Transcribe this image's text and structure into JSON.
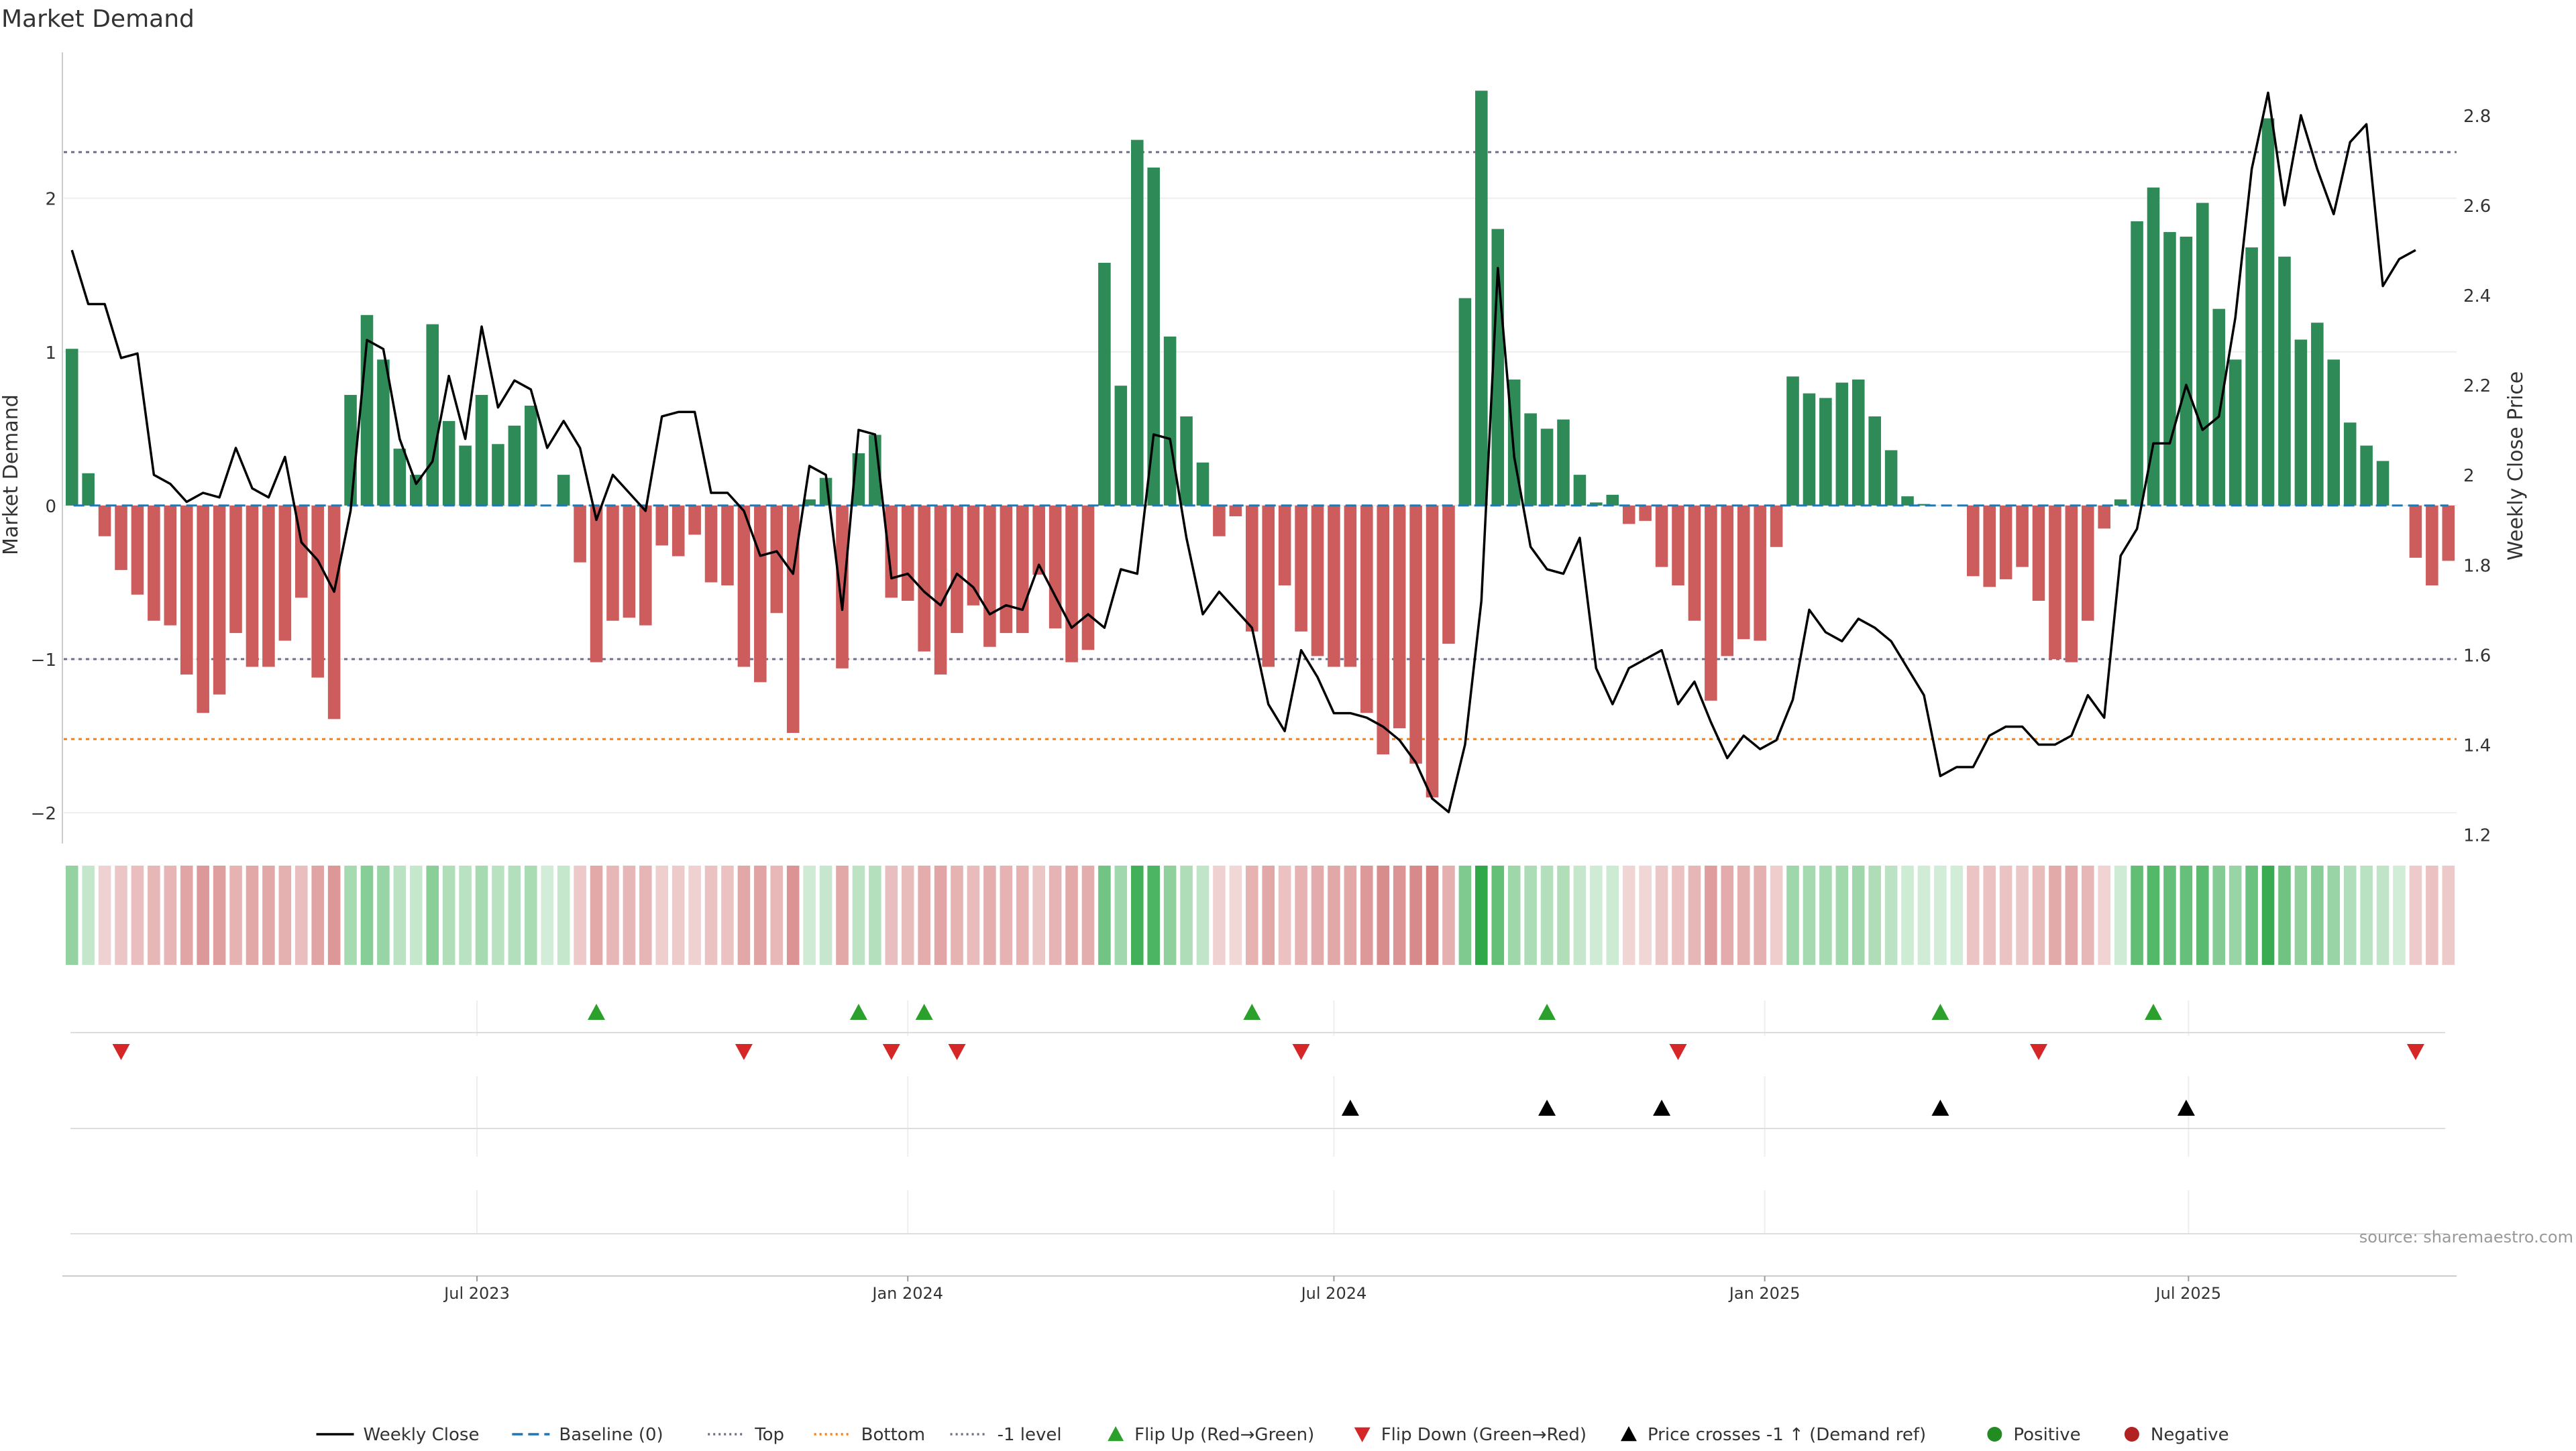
{
  "title": "Market Demand",
  "source": "source: sharemaestro.com",
  "colors": {
    "positive": "#2e8b57",
    "negative": "#cd5c5c",
    "price": "#000000",
    "baseline": "#1f77b4",
    "top": "#6e6e8c",
    "bottom": "#ff7f0e",
    "flip_up": "#2ca02c",
    "flip_down": "#d62728",
    "cross": "#000000",
    "grid": "#eeeeee"
  },
  "chart_data": {
    "type": "bar",
    "ylabel": "Market Demand",
    "y2label": "Weekly Close Price",
    "ylim": [
      -2.2,
      2.95
    ],
    "y2lim": [
      1.18,
      2.94
    ],
    "yticks": [
      2,
      1,
      0,
      -1,
      -2
    ],
    "ytick_labels": [
      "2",
      "1",
      "0",
      "−1",
      "−2"
    ],
    "y2ticks": [
      2.8,
      2.6,
      2.4,
      2.2,
      2.0,
      1.8,
      1.6,
      1.4,
      1.2
    ],
    "y2tick_labels": [
      "2.8",
      "2.6",
      "2.4",
      "2.2",
      "2",
      "1.8",
      "1.6",
      "1.4",
      "1.2"
    ],
    "x_start": "2023-01-09",
    "x_end": "2025-10-20",
    "x_tick_dates": [
      "2023-07-01",
      "2024-01-01",
      "2024-07-01",
      "2025-01-01",
      "2025-07-01"
    ],
    "x_tick_labels": [
      "Jul 2023",
      "Jan 2024",
      "Jul 2024",
      "Jan 2025",
      "Jul 2025"
    ],
    "levels": {
      "top": 2.3,
      "bottom": -1.52,
      "minus_one": -1
    },
    "demand": [
      1.02,
      0.21,
      -0.2,
      -0.42,
      -0.58,
      -0.75,
      -0.78,
      -1.1,
      -1.35,
      -1.23,
      -0.83,
      -1.05,
      -1.05,
      -0.88,
      -0.6,
      -1.12,
      -1.39,
      0.72,
      1.24,
      0.95,
      0.37,
      0.2,
      1.18,
      0.55,
      0.39,
      0.72,
      0.4,
      0.52,
      0.65,
      0.0,
      0.2,
      -0.37,
      -1.02,
      -0.75,
      -0.73,
      -0.78,
      -0.26,
      -0.33,
      -0.19,
      -0.5,
      -0.52,
      -1.05,
      -1.15,
      -0.7,
      -1.48,
      0.04,
      0.18,
      -1.06,
      0.34,
      0.46,
      -0.6,
      -0.62,
      -0.95,
      -1.1,
      -0.83,
      -0.65,
      -0.92,
      -0.83,
      -0.83,
      -0.45,
      -0.8,
      -1.02,
      -0.94,
      1.58,
      0.78,
      2.38,
      2.2,
      1.1,
      0.58,
      0.28,
      -0.2,
      -0.07,
      -0.82,
      -1.05,
      -0.52,
      -0.82,
      -0.98,
      -1.05,
      -1.05,
      -1.35,
      -1.62,
      -1.45,
      -1.68,
      -1.9,
      -0.9,
      1.35,
      2.7,
      1.8,
      0.82,
      0.6,
      0.5,
      0.56,
      0.2,
      0.02,
      0.07,
      -0.12,
      -0.1,
      -0.4,
      -0.52,
      -0.75,
      -1.27,
      -0.98,
      -0.87,
      -0.88,
      -0.27,
      0.84,
      0.73,
      0.7,
      0.8,
      0.82,
      0.58,
      0.36,
      0.06,
      0.01,
      0.0,
      0.0,
      -0.46,
      -0.53,
      -0.48,
      -0.4,
      -0.62,
      -1.0,
      -1.02,
      -0.75,
      -0.15,
      0.04,
      1.85,
      2.07,
      1.78,
      1.75,
      1.97,
      1.28,
      0.95,
      1.68,
      2.52,
      1.62,
      1.08,
      1.19,
      0.95,
      0.54,
      0.39,
      0.29,
      0.0,
      -0.34,
      -0.52,
      -0.36
    ],
    "price": [
      2.5,
      2.38,
      2.38,
      2.26,
      2.27,
      2.0,
      1.98,
      1.94,
      1.96,
      1.95,
      2.06,
      1.97,
      1.95,
      2.04,
      1.85,
      1.81,
      1.74,
      1.92,
      2.3,
      2.28,
      2.08,
      1.98,
      2.03,
      2.22,
      2.08,
      2.33,
      2.15,
      2.21,
      2.19,
      2.06,
      2.12,
      2.06,
      1.9,
      2.0,
      1.96,
      1.92,
      2.13,
      2.14,
      2.14,
      1.96,
      1.96,
      1.92,
      1.82,
      1.83,
      1.78,
      2.02,
      2.0,
      1.7,
      2.1,
      2.09,
      1.77,
      1.78,
      1.74,
      1.71,
      1.78,
      1.75,
      1.69,
      1.71,
      1.7,
      1.8,
      1.73,
      1.66,
      1.69,
      1.66,
      1.79,
      1.78,
      2.09,
      2.08,
      1.86,
      1.69,
      1.74,
      1.7,
      1.66,
      1.49,
      1.43,
      1.61,
      1.55,
      1.47,
      1.47,
      1.46,
      1.44,
      1.41,
      1.36,
      1.28,
      1.25,
      1.4,
      1.72,
      2.46,
      2.04,
      1.84,
      1.79,
      1.78,
      1.86,
      1.57,
      1.49,
      1.57,
      1.59,
      1.61,
      1.49,
      1.54,
      1.45,
      1.37,
      1.42,
      1.39,
      1.41,
      1.5,
      1.7,
      1.65,
      1.63,
      1.68,
      1.66,
      1.63,
      1.57,
      1.51,
      1.33,
      1.35,
      1.35,
      1.42,
      1.44,
      1.44,
      1.4,
      1.4,
      1.42,
      1.51,
      1.46,
      1.82,
      1.88,
      2.07,
      2.07,
      2.2,
      2.1,
      2.13,
      2.35,
      2.68,
      2.85,
      2.6,
      2.8,
      2.68,
      2.58,
      2.74,
      2.78,
      2.42,
      2.48,
      2.5
    ],
    "flip_up_dates": [
      "2023-08-21",
      "2023-12-11",
      "2024-01-08",
      "2024-05-27",
      "2024-09-30",
      "2025-03-17",
      "2025-06-16"
    ],
    "flip_down_dates": [
      "2023-01-30",
      "2023-10-23",
      "2023-12-25",
      "2024-01-22",
      "2024-06-17",
      "2024-11-25",
      "2025-04-28",
      "2025-10-06"
    ],
    "price_cross_dates": [
      "2024-07-08",
      "2024-09-30",
      "2024-11-18",
      "2025-03-17",
      "2025-06-30"
    ],
    "legend": [
      {
        "label": "Weekly Close",
        "kind": "line",
        "color": "#000000",
        "dash": ""
      },
      {
        "label": "Baseline (0)",
        "kind": "line",
        "color": "#1f77b4",
        "dash": "16 8"
      },
      {
        "label": "Top",
        "kind": "line",
        "color": "#6e6e8c",
        "dash": "3 5"
      },
      {
        "label": "Bottom",
        "kind": "line",
        "color": "#ff7f0e",
        "dash": "3 5"
      },
      {
        "label": "-1 level",
        "kind": "line",
        "color": "#6e6e8c",
        "dash": "3 5"
      },
      {
        "label": "Flip Up (Red→Green)",
        "kind": "up",
        "color": "#2ca02c"
      },
      {
        "label": "Flip Down (Green→Red)",
        "kind": "down",
        "color": "#d62728"
      },
      {
        "label": "Price crosses -1 ↑ (Demand ref)",
        "kind": "up",
        "color": "#000000"
      },
      {
        "label": "Positive",
        "kind": "dot",
        "color": "#228b22"
      },
      {
        "label": "Negative",
        "kind": "dot",
        "color": "#b22222"
      }
    ]
  }
}
